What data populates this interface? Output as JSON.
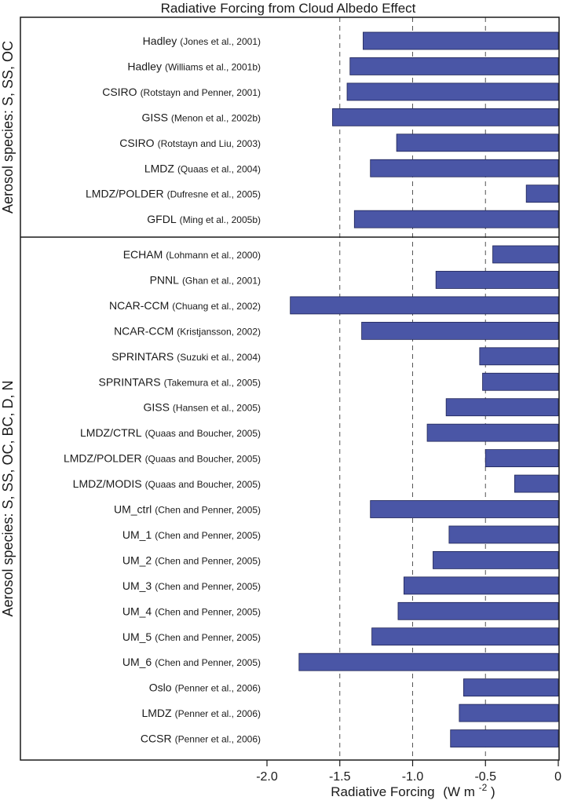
{
  "chart_data": {
    "type": "bar",
    "orientation": "horizontal",
    "title": "Radiative Forcing from Cloud Albedo Effect",
    "xlabel": "Radiative Forcing",
    "xlabel_unit_base": "(W m",
    "xlabel_unit_exp": "-2",
    "xlabel_unit_close": ")",
    "xlim": [
      -2.0,
      0
    ],
    "xticks": [
      -2.0,
      -1.5,
      -1.0,
      -0.5,
      0
    ],
    "xtick_labels": [
      "-2.0",
      "-1.5",
      "-1.0",
      "-0.5",
      "0"
    ],
    "dashed_gridlines_at": [
      -1.5,
      -1.0,
      -0.5
    ],
    "bar_color": "#4a56a6",
    "groups": [
      {
        "label": "Aerosol species: S, SS, OC",
        "bars": [
          {
            "model": "Hadley",
            "ref": "(Jones et al., 2001)",
            "value": -1.34
          },
          {
            "model": "Hadley",
            "ref": "(Williams et al., 2001b)",
            "value": -1.43
          },
          {
            "model": "CSIRO",
            "ref": "(Rotstayn and Penner, 2001)",
            "value": -1.45
          },
          {
            "model": "GISS",
            "ref": "(Menon et al., 2002b)",
            "value": -1.55
          },
          {
            "model": "CSIRO",
            "ref": "(Rotstayn and Liu, 2003)",
            "value": -1.11
          },
          {
            "model": "LMDZ",
            "ref": "(Quaas et al., 2004)",
            "value": -1.29
          },
          {
            "model": "LMDZ/POLDER",
            "ref": "(Dufresne et al., 2005)",
            "value": -0.22
          },
          {
            "model": "GFDL",
            "ref": "(Ming et al., 2005b)",
            "value": -1.4
          }
        ]
      },
      {
        "label": "Aerosol species: S, SS, OC, BC, D, N",
        "bars": [
          {
            "model": "ECHAM",
            "ref": "(Lohmann et al., 2000)",
            "value": -0.45
          },
          {
            "model": "PNNL",
            "ref": "(Ghan et al., 2001)",
            "value": -0.84
          },
          {
            "model": "NCAR-CCM",
            "ref": "(Chuang et al., 2002)",
            "value": -1.84
          },
          {
            "model": "NCAR-CCM",
            "ref": "(Kristjansson, 2002)",
            "value": -1.35
          },
          {
            "model": "SPRINTARS",
            "ref": "(Suzuki et al., 2004)",
            "value": -0.54
          },
          {
            "model": "SPRINTARS",
            "ref": "(Takemura et al., 2005)",
            "value": -0.52
          },
          {
            "model": "GISS",
            "ref": "(Hansen et al., 2005)",
            "value": -0.77
          },
          {
            "model": "LMDZ/CTRL",
            "ref": "(Quaas and Boucher, 2005)",
            "value": -0.9
          },
          {
            "model": "LMDZ/POLDER",
            "ref": "(Quaas and Boucher, 2005)",
            "value": -0.5
          },
          {
            "model": "LMDZ/MODIS",
            "ref": "(Quaas and Boucher, 2005)",
            "value": -0.3
          },
          {
            "model": "UM_ctrl",
            "ref": "(Chen and Penner, 2005)",
            "value": -1.29
          },
          {
            "model": "UM_1",
            "ref": "(Chen and Penner, 2005)",
            "value": -0.75
          },
          {
            "model": "UM_2",
            "ref": "(Chen and Penner, 2005)",
            "value": -0.86
          },
          {
            "model": "UM_3",
            "ref": "(Chen and Penner, 2005)",
            "value": -1.06
          },
          {
            "model": "UM_4",
            "ref": "(Chen and Penner, 2005)",
            "value": -1.1
          },
          {
            "model": "UM_5",
            "ref": "(Chen and Penner, 2005)",
            "value": -1.28
          },
          {
            "model": "UM_6",
            "ref": "(Chen and Penner, 2005)",
            "value": -1.78
          },
          {
            "model": "Oslo",
            "ref": "(Penner et al., 2006)",
            "value": -0.65
          },
          {
            "model": "LMDZ",
            "ref": "(Penner et al., 2006)",
            "value": -0.68
          },
          {
            "model": "CCSR",
            "ref": "(Penner et al., 2006)",
            "value": -0.74
          }
        ]
      }
    ]
  }
}
